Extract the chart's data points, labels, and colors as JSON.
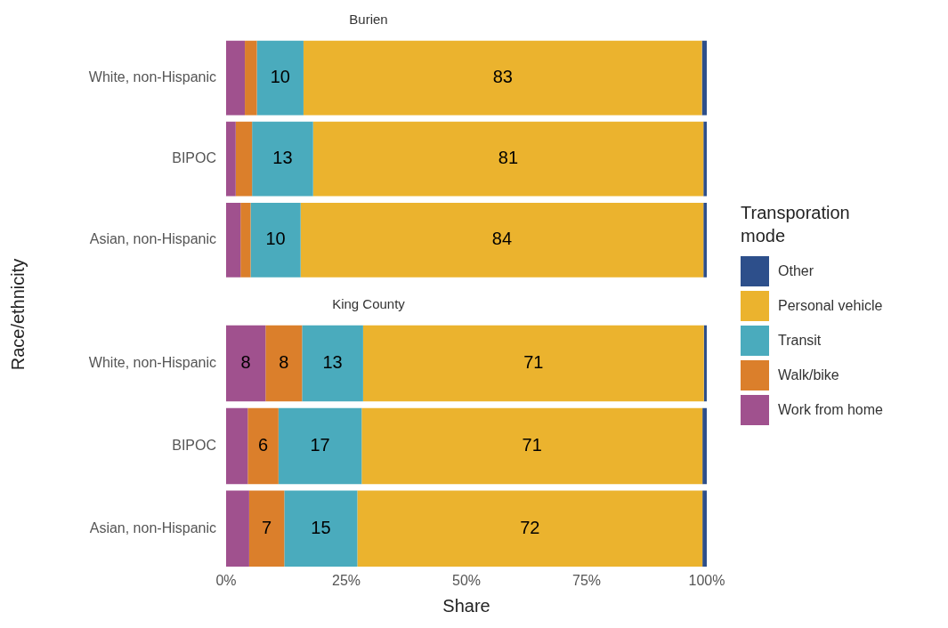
{
  "chart_data": [
    {
      "type": "bar",
      "title": "Burien",
      "ylabel": "Race/ethnicity",
      "orientation": "horizontal",
      "stacked": true,
      "tick_labels": "y",
      "categories": [
        "White, non-Hispanic",
        "BIPOC",
        "Asian, non-Hispanic"
      ],
      "xlim": [
        0,
        100
      ],
      "series": [
        {
          "color": "#a0518e",
          "values": [
            3.9,
            2.0,
            3.0
          ],
          "value_labels": [
            null,
            null,
            null
          ]
        },
        {
          "color": "#db7f2b",
          "values": [
            2.5,
            3.4,
            2.1
          ],
          "value_labels": [
            null,
            null,
            null
          ]
        },
        {
          "color": "#4aabbd",
          "values": [
            9.7,
            12.7,
            10.4
          ],
          "value_labels": [
            "10",
            "13",
            "10"
          ]
        },
        {
          "color": "#ebb32e",
          "values": [
            82.9,
            81.2,
            83.8
          ],
          "value_labels": [
            "83",
            "81",
            "84"
          ]
        },
        {
          "color": "#2d4f8b",
          "values": [
            1.0,
            0.7,
            0.7
          ],
          "value_labels": [
            null,
            null,
            null
          ]
        }
      ]
    },
    {
      "type": "bar",
      "title": "King County",
      "xlabel": "Share",
      "legend_title": "Transporation mode",
      "legend": "right",
      "orientation": "horizontal",
      "stacked": true,
      "categories": [
        "White, non-Hispanic",
        "BIPOC",
        "Asian, non-Hispanic"
      ],
      "xlim": [
        0,
        100
      ],
      "xticks": [
        {
          "value": 0,
          "label": "0%"
        },
        {
          "value": 25,
          "label": "25%"
        },
        {
          "value": 50,
          "label": "50%"
        },
        {
          "value": 75,
          "label": "75%"
        },
        {
          "value": 100,
          "label": "100%"
        }
      ],
      "series": [
        {
          "name": "Work from home",
          "color": "#a0518e",
          "values": [
            8.2,
            4.5,
            4.8
          ],
          "value_labels": [
            "8",
            null,
            null
          ]
        },
        {
          "name": "Walk/bike",
          "color": "#db7f2b",
          "values": [
            7.6,
            6.4,
            7.3
          ],
          "value_labels": [
            "8",
            "6",
            "7"
          ]
        },
        {
          "name": "Transit",
          "color": "#4aabbd",
          "values": [
            12.7,
            17.3,
            15.2
          ],
          "value_labels": [
            "13",
            "17",
            "15"
          ]
        },
        {
          "name": "Personal vehicle",
          "color": "#ebb32e",
          "values": [
            70.9,
            70.9,
            71.8
          ],
          "value_labels": [
            "71",
            "71",
            "72"
          ]
        },
        {
          "name": "Other",
          "color": "#2d4f8b",
          "values": [
            0.6,
            0.9,
            0.9
          ],
          "value_labels": [
            null,
            null,
            null
          ]
        }
      ]
    }
  ]
}
